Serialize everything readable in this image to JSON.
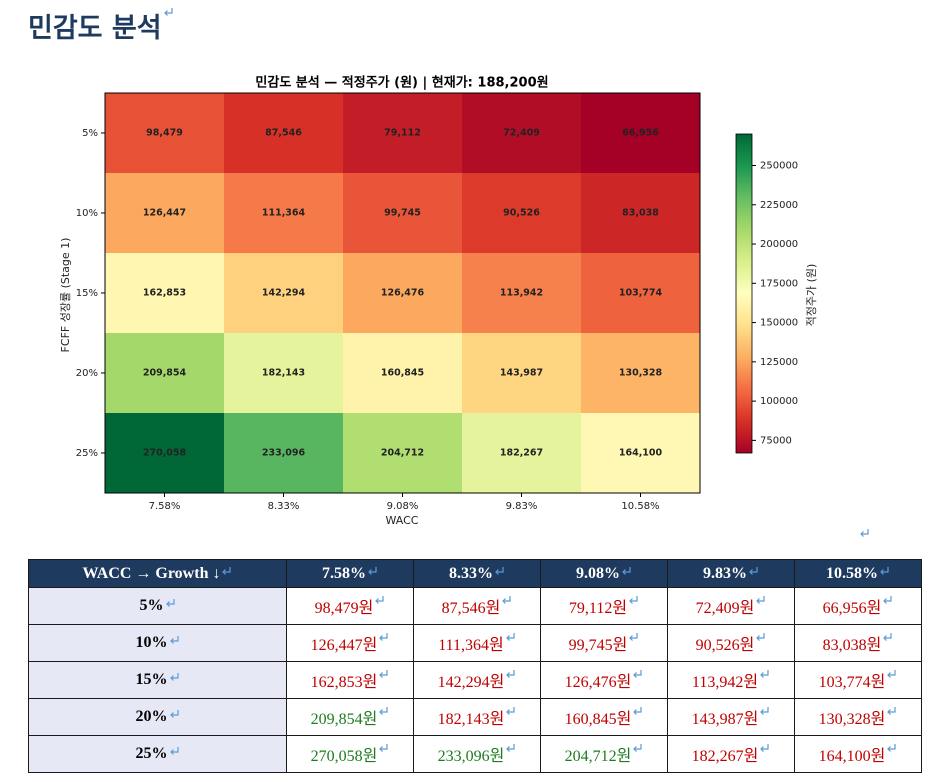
{
  "heading": "민감도 분석",
  "chart_data": {
    "type": "heatmap",
    "title": "민감도 분석 — 적정주가 (원) | 현재가: 188,200원",
    "x_label": "WACC",
    "y_label": "FCFF 성장률 (Stage 1)",
    "x_categories": [
      "7.58%",
      "8.33%",
      "9.08%",
      "9.83%",
      "10.58%"
    ],
    "y_categories": [
      "5%",
      "10%",
      "15%",
      "20%",
      "25%"
    ],
    "values": [
      [
        98479,
        87546,
        79112,
        72409,
        66956
      ],
      [
        126447,
        111364,
        99745,
        90526,
        83038
      ],
      [
        162853,
        142294,
        126476,
        113942,
        103774
      ],
      [
        209854,
        182143,
        160845,
        143987,
        130328
      ],
      [
        270058,
        233096,
        204712,
        182267,
        164100
      ]
    ],
    "value_labels": [
      [
        "98,479",
        "87,546",
        "79,112",
        "72,409",
        "66,956"
      ],
      [
        "126,447",
        "111,364",
        "99,745",
        "90,526",
        "83,038"
      ],
      [
        "162,853",
        "142,294",
        "126,476",
        "113,942",
        "103,774"
      ],
      [
        "209,854",
        "182,143",
        "160,845",
        "143,987",
        "130,328"
      ],
      [
        "270,058",
        "233,096",
        "204,712",
        "182,267",
        "164,100"
      ]
    ],
    "colormap": "RdYlGn",
    "colorbar_label": "적정주가 (원)",
    "zlim": [
      66956,
      270058
    ],
    "zticks": [
      75000,
      100000,
      125000,
      150000,
      175000,
      200000,
      225000,
      250000
    ]
  },
  "table": {
    "header": [
      "WACC → Growth ↓",
      "7.58%",
      "8.33%",
      "9.08%",
      "9.83%",
      "10.58%"
    ],
    "rows": [
      [
        "5%",
        "98,479원",
        "87,546원",
        "79,112원",
        "72,409원",
        "66,956원"
      ],
      [
        "10%",
        "126,447원",
        "111,364원",
        "99,745원",
        "90,526원",
        "83,038원"
      ],
      [
        "15%",
        "162,853원",
        "142,294원",
        "126,476원",
        "113,942원",
        "103,774원"
      ],
      [
        "20%",
        "209,854원",
        "182,143원",
        "160,845원",
        "143,987원",
        "130,328원"
      ],
      [
        "25%",
        "270,058원",
        "233,096원",
        "204,712원",
        "182,267원",
        "164,100원"
      ]
    ],
    "cell_colors": [
      [
        "#c00000",
        "#c00000",
        "#c00000",
        "#c00000",
        "#c00000"
      ],
      [
        "#c00000",
        "#c00000",
        "#c00000",
        "#c00000",
        "#c00000"
      ],
      [
        "#c00000",
        "#c00000",
        "#c00000",
        "#c00000",
        "#c00000"
      ],
      [
        "#1e7b1e",
        "#c00000",
        "#c00000",
        "#c00000",
        "#c00000"
      ],
      [
        "#1e7b1e",
        "#1e7b1e",
        "#1e7b1e",
        "#c00000",
        "#c00000"
      ]
    ]
  }
}
